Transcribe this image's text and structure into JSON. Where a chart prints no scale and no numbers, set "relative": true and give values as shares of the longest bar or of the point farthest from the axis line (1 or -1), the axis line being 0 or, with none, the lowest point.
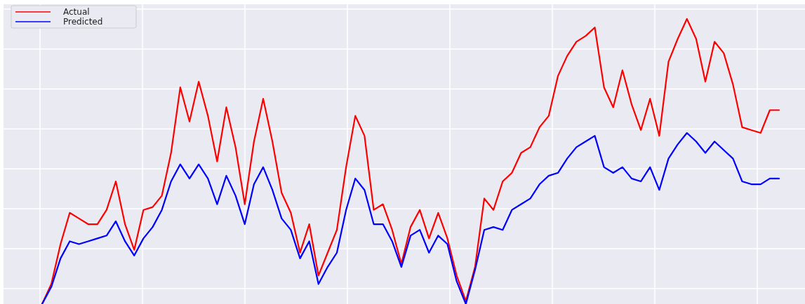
{
  "chart_data": {
    "type": "line",
    "relative": true,
    "grid": true,
    "legend": "top left",
    "categories": [
      null,
      null,
      null,
      null,
      null,
      null,
      null,
      null,
      null,
      null,
      null,
      null,
      null,
      null,
      null,
      null,
      null,
      null,
      null,
      null,
      null,
      null,
      null,
      null,
      null,
      null,
      null,
      null,
      null,
      null,
      null,
      null,
      null,
      null,
      null,
      null,
      null,
      null,
      null,
      null,
      null,
      null,
      null,
      null,
      null,
      null,
      null,
      null,
      null,
      null,
      null,
      null,
      null,
      null,
      null,
      null,
      null,
      null,
      null,
      null,
      null,
      null,
      null,
      null,
      null,
      null,
      null,
      null,
      null,
      null,
      null,
      null,
      null,
      null,
      null,
      null,
      null,
      null,
      null,
      null,
      null
    ],
    "series": [
      {
        "name": "Actual",
        "color": "#ff0000",
        "values": [
          0,
          0.07,
          0.21,
          0.32,
          0.3,
          0.28,
          0.28,
          0.33,
          0.43,
          0.28,
          0.19,
          0.33,
          0.34,
          0.38,
          0.53,
          0.76,
          0.64,
          0.78,
          0.66,
          0.5,
          0.69,
          0.55,
          0.35,
          0.57,
          0.72,
          0.57,
          0.39,
          0.32,
          0.18,
          0.28,
          0.1,
          0.18,
          0.26,
          0.48,
          0.66,
          0.59,
          0.33,
          0.35,
          0.26,
          0.14,
          0.27,
          0.33,
          0.23,
          0.32,
          0.23,
          0.1,
          0.01,
          0.13,
          0.37,
          0.33,
          0.43,
          0.46,
          0.53,
          0.55,
          0.62,
          0.66,
          0.8,
          0.87,
          0.92,
          0.94,
          0.97,
          0.76,
          0.69,
          0.82,
          0.7,
          0.61,
          0.72,
          0.59,
          0.85,
          0.93,
          1,
          0.93,
          0.78,
          0.92,
          0.88,
          0.77,
          0.62,
          0.61,
          0.6,
          0.68,
          0.68
        ]
      },
      {
        "name": "Predicted",
        "color": "#0000ff",
        "values": [
          0,
          0.06,
          0.16,
          0.22,
          0.21,
          0.22,
          0.23,
          0.24,
          0.29,
          0.22,
          0.17,
          0.23,
          0.27,
          0.33,
          0.43,
          0.49,
          0.44,
          0.49,
          0.44,
          0.35,
          0.45,
          0.38,
          0.28,
          0.42,
          0.48,
          0.4,
          0.3,
          0.26,
          0.16,
          0.22,
          0.07,
          0.13,
          0.18,
          0.33,
          0.44,
          0.4,
          0.28,
          0.28,
          0.22,
          0.13,
          0.24,
          0.26,
          0.18,
          0.24,
          0.21,
          0.08,
          0,
          0.12,
          0.26,
          0.27,
          0.26,
          0.33,
          0.35,
          0.37,
          0.42,
          0.45,
          0.46,
          0.51,
          0.55,
          0.57,
          0.59,
          0.48,
          0.46,
          0.48,
          0.44,
          0.43,
          0.48,
          0.4,
          0.51,
          0.56,
          0.6,
          0.57,
          0.53,
          0.57,
          0.54,
          0.51,
          0.43,
          0.42,
          0.42,
          0.44,
          0.44
        ]
      }
    ]
  }
}
